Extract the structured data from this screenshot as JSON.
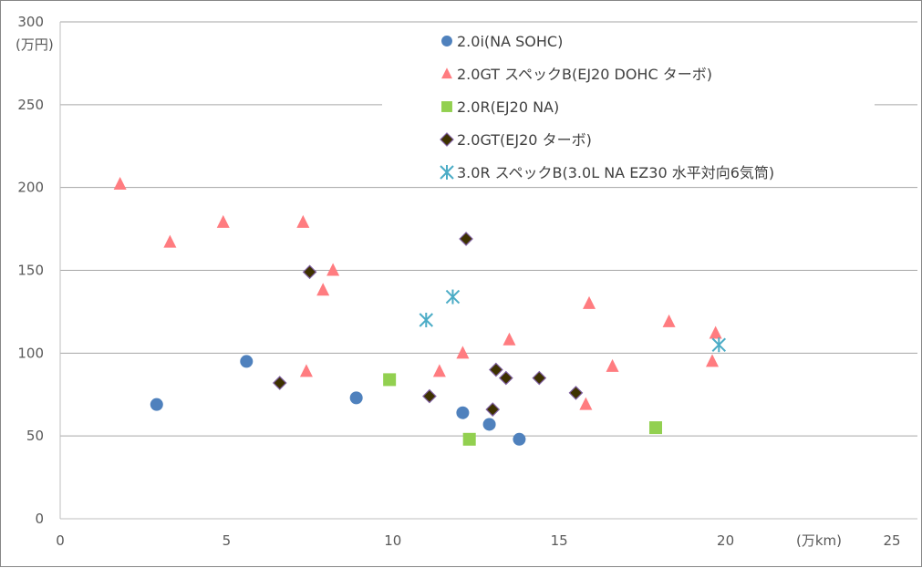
{
  "chart_data": {
    "type": "scatter",
    "title": "",
    "xlabel": "(万km)",
    "ylabel": "(万円)",
    "xlim": [
      0,
      25
    ],
    "ylim": [
      0,
      300
    ],
    "xticks": [
      "0",
      "5",
      "10",
      "15",
      "20",
      "25"
    ],
    "yticks": [
      "0",
      "50",
      "100",
      "150",
      "200",
      "250",
      "300"
    ],
    "grid": "horizontal",
    "legend_position": "top-right",
    "series": [
      {
        "name": "2.0i(NA SOHC)",
        "marker": "circle",
        "color": "#4F81BD",
        "points": [
          [
            2.9,
            69
          ],
          [
            5.6,
            95
          ],
          [
            8.9,
            73
          ],
          [
            12.1,
            64
          ],
          [
            12.9,
            57
          ],
          [
            13.8,
            48
          ]
        ]
      },
      {
        "name": "2.0GT スペックB(EJ20 DOHC ターボ)",
        "marker": "triangle",
        "color": "#FF7C80",
        "points": [
          [
            1.8,
            202
          ],
          [
            3.3,
            167
          ],
          [
            4.9,
            179
          ],
          [
            7.3,
            179
          ],
          [
            8.2,
            150
          ],
          [
            7.9,
            138
          ],
          [
            7.4,
            89
          ],
          [
            11.4,
            89
          ],
          [
            12.1,
            100
          ],
          [
            13.5,
            108
          ],
          [
            15.9,
            130
          ],
          [
            15.8,
            69
          ],
          [
            16.6,
            92
          ],
          [
            18.3,
            119
          ],
          [
            19.7,
            112
          ],
          [
            19.6,
            95
          ]
        ]
      },
      {
        "name": "2.0R(EJ20 NA)",
        "marker": "square",
        "color": "#92D050",
        "points": [
          [
            9.9,
            84
          ],
          [
            12.3,
            48
          ],
          [
            17.9,
            55
          ]
        ]
      },
      {
        "name": "2.0GT(EJ20 ターボ)",
        "marker": "diamond",
        "color": "#3D3100",
        "stroke": "#7F5FA0",
        "points": [
          [
            7.5,
            149
          ],
          [
            12.2,
            169
          ],
          [
            6.6,
            82
          ],
          [
            11.1,
            74
          ],
          [
            13.1,
            90
          ],
          [
            13.4,
            85
          ],
          [
            13.0,
            66
          ],
          [
            14.4,
            85
          ],
          [
            15.5,
            76
          ]
        ]
      },
      {
        "name": "3.0R スペックB(3.0L NA EZ30 水平対向6気筒)",
        "marker": "asterisk",
        "color": "#4BACC6",
        "points": [
          [
            11.0,
            120
          ],
          [
            11.8,
            134
          ],
          [
            19.8,
            105
          ]
        ]
      }
    ]
  }
}
